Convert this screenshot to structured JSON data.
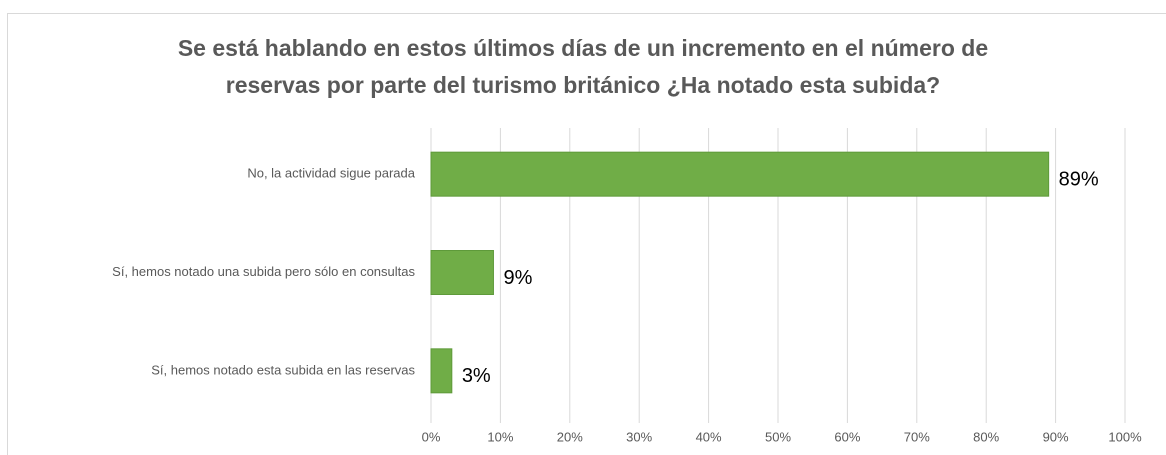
{
  "chart_data": {
    "type": "hbar",
    "title": [
      "Se está hablando en estos últimos días de un incremento en el número de",
      "reservas por parte del turismo británico ¿Ha notado esta subida?"
    ],
    "categories": [
      "No, la actividad sigue parada",
      "Sí, hemos notado una subida pero sólo en consultas",
      "Sí, hemos notado esta subida en las reservas"
    ],
    "values": [
      89,
      9,
      3
    ],
    "value_labels": [
      "89%",
      "9%",
      "3%"
    ],
    "color": "#70ad47",
    "xlim": [
      0,
      100
    ],
    "xticks": [
      {
        "value": 0,
        "label": "0%"
      },
      {
        "value": 10,
        "label": "10%"
      },
      {
        "value": 20,
        "label": "20%"
      },
      {
        "value": 30,
        "label": "30%"
      },
      {
        "value": 40,
        "label": "40%"
      },
      {
        "value": 50,
        "label": "50%"
      },
      {
        "value": 60,
        "label": "60%"
      },
      {
        "value": 70,
        "label": "70%"
      },
      {
        "value": 80,
        "label": "80%"
      },
      {
        "value": 90,
        "label": "90%"
      },
      {
        "value": 100,
        "label": "100%"
      }
    ],
    "grid": true
  }
}
